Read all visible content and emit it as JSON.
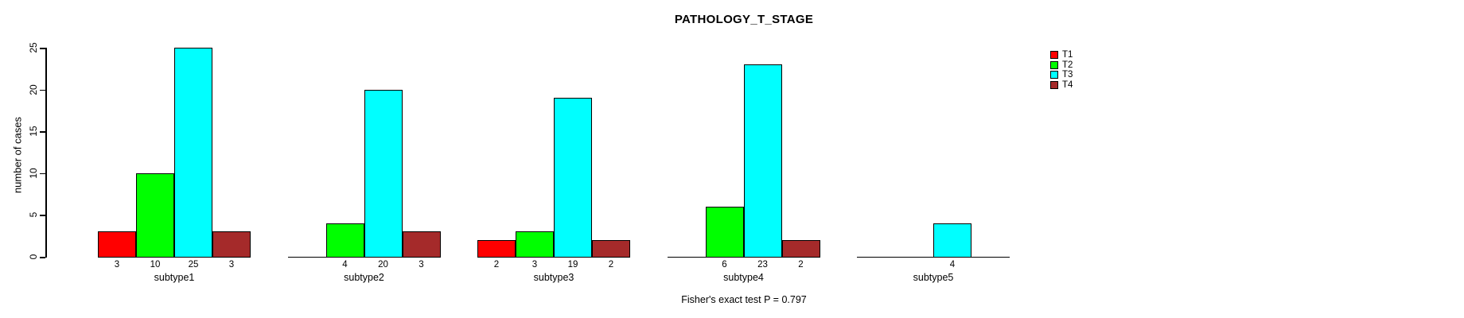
{
  "title": "PATHOLOGY_T_STAGE",
  "chart_data": {
    "type": "bar",
    "title": "PATHOLOGY_T_STAGE",
    "xlabel": "",
    "ylabel": "number of cases",
    "ylim": [
      0,
      25
    ],
    "yticks": [
      0,
      5,
      10,
      15,
      20,
      25
    ],
    "grid": false,
    "legend_position": "top-right",
    "categories": [
      "subtype1",
      "subtype2",
      "subtype3",
      "subtype4",
      "subtype5"
    ],
    "series": [
      {
        "name": "T1",
        "color": "#FF0000",
        "values": [
          3,
          0,
          2,
          0,
          0
        ]
      },
      {
        "name": "T2",
        "color": "#00FF00",
        "values": [
          10,
          4,
          3,
          6,
          0
        ]
      },
      {
        "name": "T3",
        "color": "#00FFFF",
        "values": [
          25,
          20,
          19,
          23,
          4
        ]
      },
      {
        "name": "T4",
        "color": "#A52A2A",
        "values": [
          3,
          3,
          2,
          2,
          0
        ]
      }
    ],
    "bar_value_labels": "shown under each non-zero bar",
    "annotation": "Fisher's exact test P = 0.797"
  }
}
